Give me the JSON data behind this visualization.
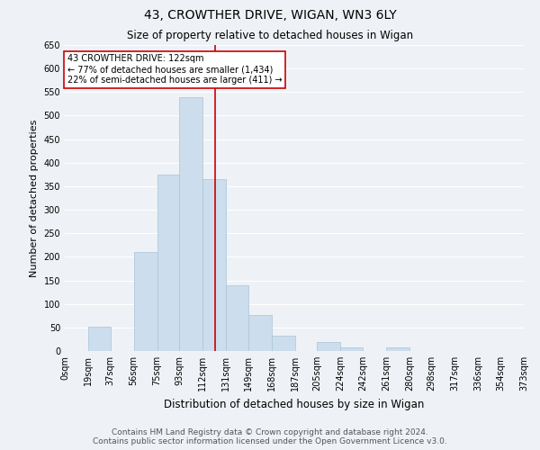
{
  "title": "43, CROWTHER DRIVE, WIGAN, WN3 6LY",
  "subtitle": "Size of property relative to detached houses in Wigan",
  "xlabel": "Distribution of detached houses by size in Wigan",
  "ylabel": "Number of detached properties",
  "bar_edges": [
    0,
    19,
    37,
    56,
    75,
    93,
    112,
    131,
    149,
    168,
    187,
    205,
    224,
    242,
    261,
    280,
    298,
    317,
    336,
    354,
    373
  ],
  "bar_heights": [
    0,
    52,
    0,
    210,
    375,
    540,
    365,
    140,
    77,
    33,
    0,
    20,
    8,
    0,
    8,
    0,
    0,
    0,
    0,
    0
  ],
  "bar_color": "#ccdded",
  "bar_edge_color": "#aac4d8",
  "property_line_x": 122,
  "property_line_color": "#cc0000",
  "annotation_text": "43 CROWTHER DRIVE: 122sqm\n← 77% of detached houses are smaller (1,434)\n22% of semi-detached houses are larger (411) →",
  "annotation_box_color": "#ffffff",
  "annotation_box_edge": "#cc0000",
  "ylim": [
    0,
    650
  ],
  "yticks": [
    0,
    50,
    100,
    150,
    200,
    250,
    300,
    350,
    400,
    450,
    500,
    550,
    600,
    650
  ],
  "xtick_labels": [
    "0sqm",
    "19sqm",
    "37sqm",
    "56sqm",
    "75sqm",
    "93sqm",
    "112sqm",
    "131sqm",
    "149sqm",
    "168sqm",
    "187sqm",
    "205sqm",
    "224sqm",
    "242sqm",
    "261sqm",
    "280sqm",
    "298sqm",
    "317sqm",
    "336sqm",
    "354sqm",
    "373sqm"
  ],
  "xtick_positions": [
    0,
    19,
    37,
    56,
    75,
    93,
    112,
    131,
    149,
    168,
    187,
    205,
    224,
    242,
    261,
    280,
    298,
    317,
    336,
    354,
    373
  ],
  "footer_line1": "Contains HM Land Registry data © Crown copyright and database right 2024.",
  "footer_line2": "Contains public sector information licensed under the Open Government Licence v3.0.",
  "bg_color": "#eef2f6",
  "grid_color": "#ffffff",
  "title_fontsize": 10,
  "subtitle_fontsize": 8.5,
  "axis_label_fontsize": 8,
  "tick_fontsize": 7,
  "footer_fontsize": 6.5
}
